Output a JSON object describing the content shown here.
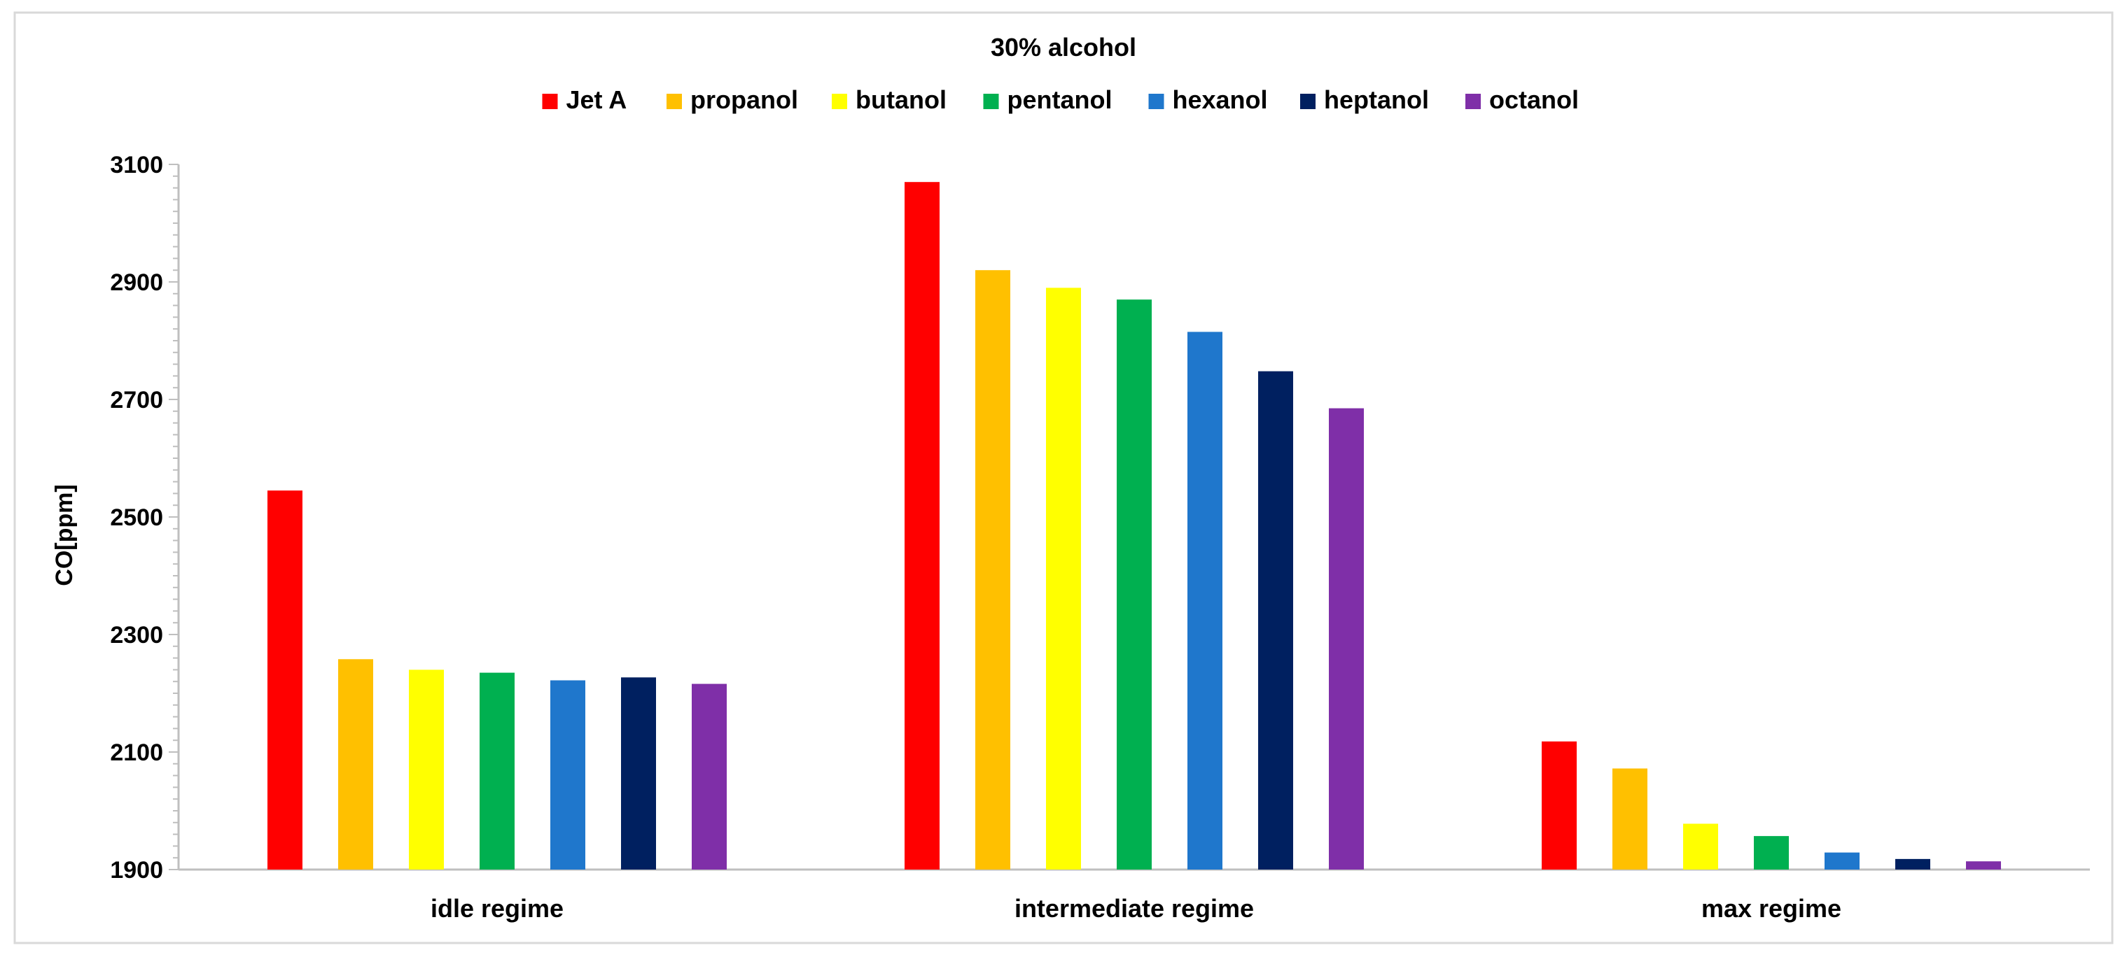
{
  "chart_data": {
    "type": "bar",
    "title": "30% alcohol",
    "xlabel": "",
    "ylabel": "CO[ppm]",
    "ylim": [
      1900,
      3100
    ],
    "yticks": [
      1900,
      2100,
      2300,
      2500,
      2700,
      2900,
      3100
    ],
    "grid": false,
    "legend_position": "top",
    "categories": [
      "idle regime",
      "intermediate regime",
      "max regime"
    ],
    "series": [
      {
        "name": "Jet A",
        "color": "#ff0000",
        "values": [
          2545,
          3070,
          2118
        ]
      },
      {
        "name": "propanol",
        "color": "#ffc000",
        "values": [
          2258,
          2920,
          2072
        ]
      },
      {
        "name": "butanol",
        "color": "#ffff00",
        "values": [
          2240,
          2890,
          1978
        ]
      },
      {
        "name": "pentanol",
        "color": "#00b050",
        "values": [
          2235,
          2870,
          1957
        ]
      },
      {
        "name": "hexanol",
        "color": "#1f77cc",
        "values": [
          2222,
          2815,
          1929
        ]
      },
      {
        "name": "heptanol",
        "color": "#002060",
        "values": [
          2227,
          2748,
          1918
        ]
      },
      {
        "name": "octanol",
        "color": "#7f2fa8",
        "values": [
          2216,
          2685,
          1914
        ]
      }
    ]
  }
}
